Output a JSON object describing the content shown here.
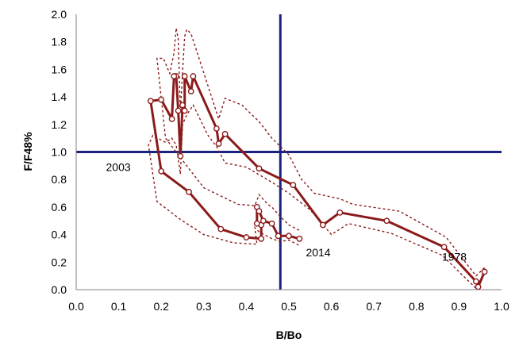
{
  "chart_data": {
    "type": "line",
    "title": "",
    "xlabel": "B/Bo",
    "ylabel": "F/F48%",
    "xlim": [
      0.0,
      1.0
    ],
    "ylim": [
      0.0,
      2.0
    ],
    "xticks": [
      "0.0",
      "0.1",
      "0.2",
      "0.3",
      "0.4",
      "0.5",
      "0.6",
      "0.7",
      "0.8",
      "0.9",
      "1.0"
    ],
    "yticks": [
      "0.0",
      "0.2",
      "0.4",
      "0.6",
      "0.8",
      "1.0",
      "1.2",
      "1.4",
      "1.6",
      "1.8",
      "2.0"
    ],
    "grid": false,
    "reference_lines": {
      "x": 0.48,
      "y": 1.0,
      "color": "#1a237e"
    },
    "colors": {
      "series": "#8b1a1a",
      "reference": "#1a237e"
    },
    "annotations": [
      {
        "text": "2003",
        "x": 0.07,
        "y": 0.89
      },
      {
        "text": "2014",
        "x": 0.54,
        "y": 0.27
      },
      {
        "text": "1978",
        "x": 0.86,
        "y": 0.24
      }
    ],
    "series": [
      {
        "style": "solid-with-open-markers",
        "points": [
          [
            0.96,
            0.13
          ],
          [
            0.945,
            0.02
          ],
          [
            0.94,
            0.06
          ],
          [
            0.865,
            0.31
          ],
          [
            0.73,
            0.5
          ],
          [
            0.62,
            0.56
          ],
          [
            0.58,
            0.47
          ],
          [
            0.51,
            0.76
          ],
          [
            0.43,
            0.88
          ],
          [
            0.35,
            1.13
          ],
          [
            0.335,
            1.06
          ],
          [
            0.33,
            1.17
          ],
          [
            0.275,
            1.55
          ],
          [
            0.27,
            1.44
          ],
          [
            0.255,
            1.55
          ],
          [
            0.255,
            1.3
          ],
          [
            0.25,
            1.34
          ],
          [
            0.245,
            0.97
          ],
          [
            0.24,
            1.3
          ],
          [
            0.235,
            1.55
          ],
          [
            0.23,
            1.55
          ],
          [
            0.225,
            1.24
          ],
          [
            0.2,
            1.38
          ],
          [
            0.175,
            1.37
          ],
          [
            0.2,
            0.86
          ],
          [
            0.265,
            0.71
          ],
          [
            0.34,
            0.44
          ],
          [
            0.4,
            0.38
          ],
          [
            0.435,
            0.37
          ],
          [
            0.435,
            0.47
          ],
          [
            0.425,
            0.48
          ],
          [
            0.425,
            0.6
          ],
          [
            0.43,
            0.57
          ],
          [
            0.44,
            0.5
          ],
          [
            0.46,
            0.48
          ],
          [
            0.475,
            0.39
          ],
          [
            0.5,
            0.39
          ],
          [
            0.525,
            0.37
          ]
        ]
      },
      {
        "style": "dotted-upper-bound",
        "points": [
          [
            0.96,
            0.16
          ],
          [
            0.94,
            0.1
          ],
          [
            0.87,
            0.38
          ],
          [
            0.76,
            0.57
          ],
          [
            0.65,
            0.62
          ],
          [
            0.62,
            0.66
          ],
          [
            0.56,
            0.7
          ],
          [
            0.53,
            0.8
          ],
          [
            0.5,
            0.98
          ],
          [
            0.46,
            1.1
          ],
          [
            0.43,
            1.22
          ],
          [
            0.39,
            1.34
          ],
          [
            0.35,
            1.39
          ],
          [
            0.335,
            1.24
          ],
          [
            0.27,
            1.86
          ],
          [
            0.26,
            1.89
          ],
          [
            0.255,
            1.84
          ],
          [
            0.25,
            1.58
          ],
          [
            0.245,
            1.28
          ],
          [
            0.24,
            1.82
          ],
          [
            0.235,
            1.9
          ],
          [
            0.23,
            1.72
          ],
          [
            0.22,
            1.57
          ],
          [
            0.205,
            1.68
          ],
          [
            0.19,
            1.68
          ],
          [
            0.21,
            1.1
          ],
          [
            0.24,
            0.98
          ],
          [
            0.3,
            0.74
          ],
          [
            0.38,
            0.62
          ],
          [
            0.42,
            0.61
          ],
          [
            0.43,
            0.69
          ],
          [
            0.45,
            0.62
          ],
          [
            0.46,
            0.6
          ],
          [
            0.48,
            0.53
          ],
          [
            0.5,
            0.47
          ],
          [
            0.525,
            0.43
          ]
        ]
      },
      {
        "style": "dotted-lower-bound",
        "points": [
          [
            0.955,
            0.1
          ],
          [
            0.94,
            0.01
          ],
          [
            0.86,
            0.25
          ],
          [
            0.74,
            0.41
          ],
          [
            0.64,
            0.48
          ],
          [
            0.6,
            0.4
          ],
          [
            0.55,
            0.58
          ],
          [
            0.5,
            0.7
          ],
          [
            0.46,
            0.78
          ],
          [
            0.4,
            0.89
          ],
          [
            0.35,
            0.92
          ],
          [
            0.33,
            1.04
          ],
          [
            0.31,
            1.12
          ],
          [
            0.275,
            1.34
          ],
          [
            0.26,
            1.27
          ],
          [
            0.25,
            1.2
          ],
          [
            0.245,
            0.84
          ],
          [
            0.235,
            1.05
          ],
          [
            0.225,
            1.1
          ],
          [
            0.21,
            1.07
          ],
          [
            0.18,
            1.12
          ],
          [
            0.17,
            1.05
          ],
          [
            0.19,
            0.64
          ],
          [
            0.245,
            0.51
          ],
          [
            0.3,
            0.4
          ],
          [
            0.37,
            0.34
          ],
          [
            0.425,
            0.33
          ],
          [
            0.42,
            0.45
          ],
          [
            0.43,
            0.42
          ],
          [
            0.46,
            0.37
          ],
          [
            0.48,
            0.35
          ],
          [
            0.5,
            0.36
          ],
          [
            0.525,
            0.32
          ]
        ]
      }
    ]
  }
}
